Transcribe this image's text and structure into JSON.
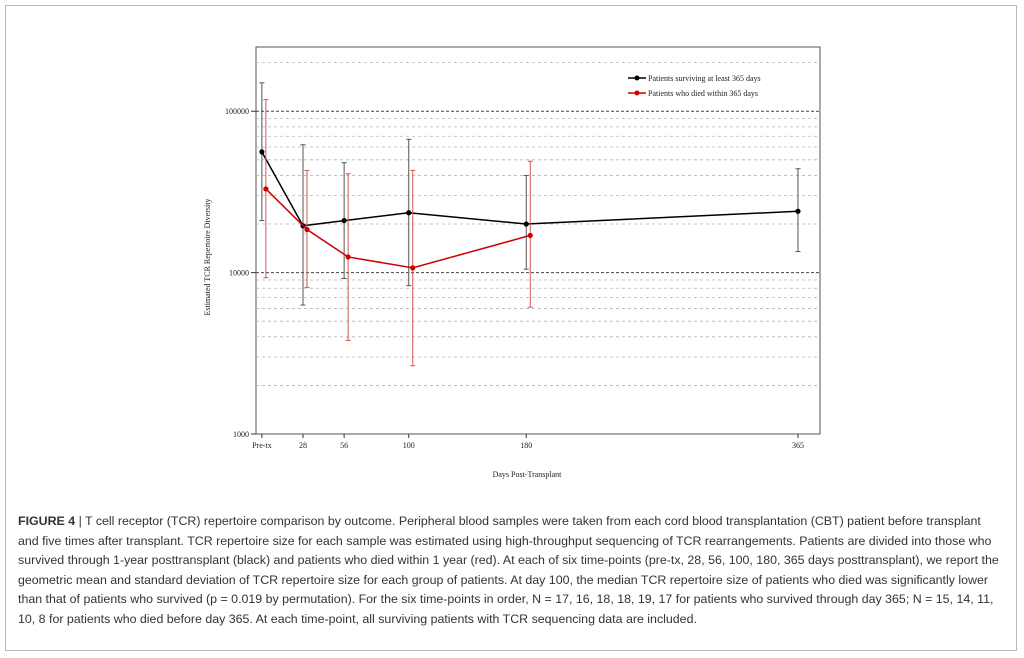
{
  "figure": {
    "label": "FIGURE 4",
    "separator": " | ",
    "caption": "T cell receptor (TCR) repertoire comparison by outcome. Peripheral blood samples were taken from each cord blood transplantation (CBT) patient before transplant and five times after transplant. TCR repertoire size for each sample was estimated using high-throughput sequencing of TCR rearrangements. Patients are divided into those who survived through 1-year posttransplant (black) and patients who died within 1 year (red). At each of six time-points (pre-tx, 28, 56, 100, 180, 365 days posttransplant), we report the geometric mean and standard deviation of TCR repertoire size for each group of patients. At day 100, the median TCR repertoire size of patients who died was significantly lower than that of patients who survived (p = 0.019 by permutation). For the six time-points in order, N = 17, 16, 18, 18, 19, 17 for patients who survived through day 365; N = 15, 14, 11, 10, 8 for patients who died before day 365. At each time-point, all surviving patients with TCR sequencing data are included."
  },
  "chart_data": {
    "type": "line",
    "title": "",
    "xlabel": "Days Post-Transplant",
    "ylabel": "Estimated TCR Repertoire Diversity",
    "yscale": "log",
    "ylim": [
      1000,
      250000
    ],
    "xlim": [
      -4,
      380
    ],
    "x_ticks": [
      {
        "value": 0,
        "label": "Pre-tx"
      },
      {
        "value": 28,
        "label": "28"
      },
      {
        "value": 56,
        "label": "56"
      },
      {
        "value": 100,
        "label": "100"
      },
      {
        "value": 180,
        "label": "180"
      },
      {
        "value": 365,
        "label": "365"
      }
    ],
    "y_ticks": [
      {
        "value": 1000,
        "label": "1000"
      },
      {
        "value": 10000,
        "label": "10000"
      },
      {
        "value": 100000,
        "label": "100000"
      }
    ],
    "grid": "dashed horizontal at log-scale minor and major ticks",
    "legend_position": "top-right",
    "series": [
      {
        "name": "Patients surviving at least 365 days",
        "color": "#000000",
        "x": [
          0,
          28,
          56,
          100,
          180,
          365
        ],
        "y": [
          56000,
          19500,
          21000,
          23500,
          20000,
          24000
        ],
        "err_low": [
          21000,
          6300,
          9200,
          8300,
          10500,
          13500
        ],
        "err_high": [
          150000,
          62000,
          48000,
          67000,
          40000,
          44000
        ]
      },
      {
        "name": "Patients who died within 365 days",
        "color": "#cc0000",
        "x": [
          0,
          28,
          56,
          100,
          180
        ],
        "y": [
          33000,
          18500,
          12500,
          10700,
          17000
        ],
        "err_low": [
          9300,
          8100,
          3800,
          2650,
          6100
        ],
        "err_high": [
          118000,
          43000,
          41000,
          43000,
          49000
        ]
      }
    ]
  }
}
